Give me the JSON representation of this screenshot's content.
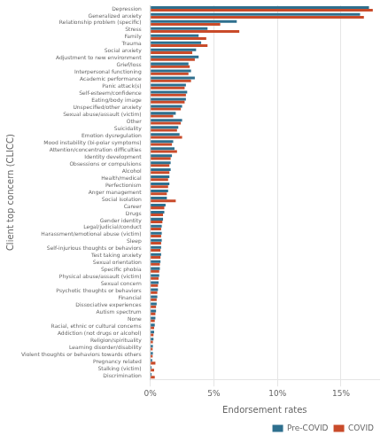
{
  "chart_data": {
    "type": "bar",
    "orientation": "horizontal",
    "xlabel": "Endorsement rates",
    "ylabel": "Client top concern (CLICC)",
    "categories": [
      "Depression",
      "Generalized anxiety",
      "Relationship problem (specific)",
      "Stress",
      "Family",
      "Trauma",
      "Social anxiety",
      "Adjustment to new environment",
      "Grief/loss",
      "Interpersonal functioning",
      "Academic performance",
      "Panic attack(s)",
      "Self-esteem/confidence",
      "Eating/body image",
      "Unspecified/other anxiety",
      "Sexual abuse/assault (victim)",
      "Other",
      "Suicidality",
      "Emotion dysregulation",
      "Mood instability (bi-polar symptoms)",
      "Attention/concentration difficulties",
      "Identity development",
      "Obsessions or compulsions",
      "Alcohol",
      "Health/medical",
      "Perfectionism",
      "Anger management",
      "Social isolation",
      "Career",
      "Drugs",
      "Gender identity",
      "Legal/judicial/conduct",
      "Harassment/emotional abuse (victim)",
      "Sleep",
      "Self-injurious thoughts or behaviors",
      "Test taking anxiety",
      "Sexual orientation",
      "Specific phobia",
      "Physical abuse/assault (victim)",
      "Sexual concern",
      "Psychotic thoughts or behaviors",
      "Financial",
      "Dissociative experiences",
      "Autism spectrum",
      "None",
      "Racial, ethnic or cultural concerns",
      "Addiction (not drugs or alcohol)",
      "Religion/spirituality",
      "Learning disorder/disability",
      "Violent thoughts or behaviors towards others",
      "Pregnancy related",
      "Stalking (victim)",
      "Discrimination"
    ],
    "series": [
      {
        "name": "Pre-COVID",
        "color": "#2E6F8E",
        "values": [
          17.2,
          16.5,
          6.8,
          4.5,
          3.8,
          4.0,
          3.6,
          3.8,
          3.0,
          3.2,
          3.5,
          2.8,
          2.9,
          2.8,
          2.5,
          2.0,
          2.5,
          2.2,
          2.3,
          1.8,
          1.9,
          1.7,
          1.6,
          1.6,
          1.5,
          1.5,
          1.4,
          1.3,
          1.2,
          1.1,
          1.0,
          0.9,
          0.9,
          0.9,
          0.85,
          0.85,
          0.8,
          0.75,
          0.7,
          0.65,
          0.6,
          0.55,
          0.5,
          0.45,
          0.4,
          0.35,
          0.3,
          0.25,
          0.2,
          0.2,
          0.15,
          0.1,
          0.1
        ]
      },
      {
        "name": "COVID",
        "color": "#C94B2A",
        "values": [
          17.5,
          16.8,
          5.5,
          7.0,
          4.4,
          4.5,
          3.3,
          3.5,
          3.1,
          3.0,
          3.2,
          2.7,
          2.8,
          2.7,
          2.4,
          1.8,
          2.4,
          2.1,
          2.5,
          1.7,
          2.1,
          1.6,
          1.5,
          1.5,
          1.4,
          1.4,
          1.3,
          2.0,
          1.1,
          1.0,
          0.95,
          0.85,
          0.85,
          0.85,
          0.8,
          0.8,
          0.75,
          0.7,
          0.65,
          0.6,
          0.55,
          0.5,
          0.45,
          0.4,
          0.35,
          0.3,
          0.25,
          0.2,
          0.18,
          0.18,
          0.4,
          0.3,
          0.35
        ]
      }
    ],
    "xlim": [
      0,
      18
    ],
    "xticks": [
      {
        "value": 0,
        "label": "0%"
      },
      {
        "value": 5,
        "label": "5%"
      },
      {
        "value": 10,
        "label": "10%"
      },
      {
        "value": 15,
        "label": "15%"
      }
    ],
    "grid": true,
    "legend": "lower right"
  }
}
